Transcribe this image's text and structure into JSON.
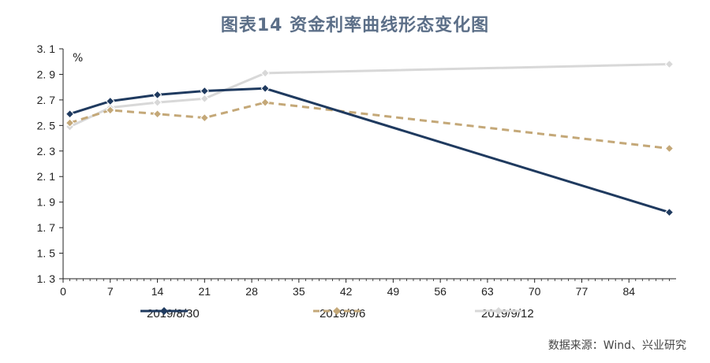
{
  "title": "图表14  资金利率曲线形态变化图",
  "unit": "%",
  "source": "数据来源：Wind、兴业研究",
  "chart_data": {
    "type": "line",
    "title": "图表14  资金利率曲线形态变化图",
    "ylabel": "%",
    "xlabel": "",
    "xlim": [
      0,
      91
    ],
    "ylim": [
      1.3,
      3.1
    ],
    "x_ticks": [
      0,
      7,
      14,
      21,
      28,
      35,
      42,
      49,
      56,
      63,
      70,
      77,
      84
    ],
    "y_ticks": [
      "1. 3",
      "1. 5",
      "1. 7",
      "1. 9",
      "2. 1",
      "2. 3",
      "2. 5",
      "2. 7",
      "2. 9",
      "3. 1"
    ],
    "y_tick_values": [
      1.3,
      1.5,
      1.7,
      1.9,
      2.1,
      2.3,
      2.5,
      2.7,
      2.9,
      3.1
    ],
    "grid": false,
    "legend_position": "bottom",
    "series": [
      {
        "name": "2019/8/30",
        "color": "#1f3a5f",
        "style": "solid",
        "marker": "diamond",
        "x": [
          1,
          7,
          14,
          21,
          30,
          90
        ],
        "y": [
          2.59,
          2.69,
          2.74,
          2.77,
          2.79,
          1.82
        ]
      },
      {
        "name": "2019/9/6",
        "color": "#c4a878",
        "style": "dashed",
        "marker": "diamond",
        "x": [
          1,
          7,
          14,
          21,
          30,
          90
        ],
        "y": [
          2.52,
          2.62,
          2.59,
          2.56,
          2.68,
          2.32
        ]
      },
      {
        "name": "2019/9/12",
        "color": "#d8d8d8",
        "style": "solid",
        "marker": "diamond",
        "x": [
          1,
          7,
          14,
          21,
          30,
          90
        ],
        "y": [
          2.49,
          2.64,
          2.68,
          2.71,
          2.91,
          2.98
        ]
      }
    ]
  }
}
